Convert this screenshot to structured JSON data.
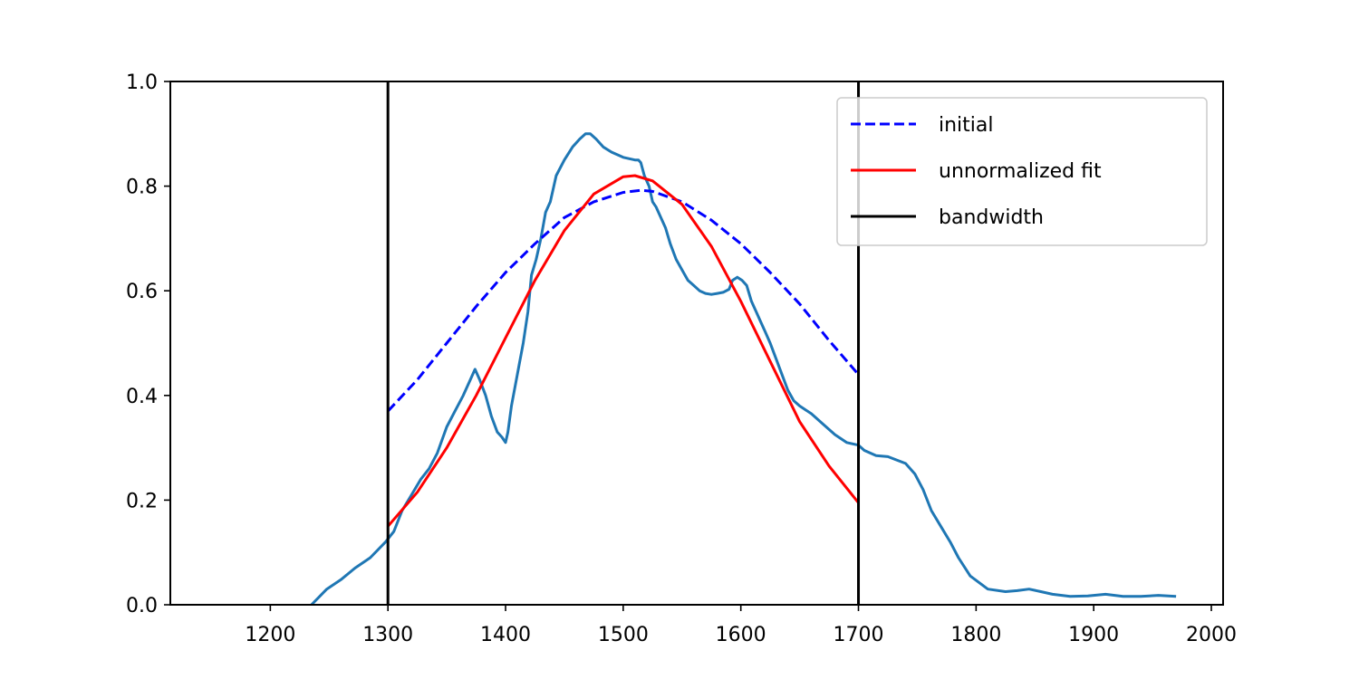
{
  "chart_data": {
    "type": "line",
    "title": "",
    "xlabel": "",
    "ylabel": "",
    "xlim": [
      1115,
      2010
    ],
    "ylim": [
      0,
      1
    ],
    "x_ticks": [
      1200,
      1300,
      1400,
      1500,
      1600,
      1700,
      1800,
      1900,
      2000
    ],
    "y_ticks": [
      0.0,
      0.2,
      0.4,
      0.6,
      0.8,
      1.0
    ],
    "x_tick_labels": [
      "1200",
      "1300",
      "1400",
      "1500",
      "1600",
      "1700",
      "1800",
      "1900",
      "2000"
    ],
    "y_tick_labels": [
      "0.0",
      "0.2",
      "0.4",
      "0.6",
      "0.8",
      "1.0"
    ],
    "grid": false,
    "legend_position": "top-right",
    "series": [
      {
        "name": "",
        "color": "#1f77b4",
        "style": "solid",
        "x": [
          1235,
          1248,
          1260,
          1272,
          1285,
          1298,
          1305,
          1312,
          1320,
          1328,
          1335,
          1342,
          1350,
          1357,
          1364,
          1370,
          1374,
          1378,
          1383,
          1388,
          1393,
          1397,
          1400,
          1402,
          1405,
          1410,
          1415,
          1419,
          1422,
          1426,
          1430,
          1434,
          1438,
          1443,
          1450,
          1457,
          1463,
          1468,
          1472,
          1477,
          1483,
          1490,
          1500,
          1510,
          1513,
          1515,
          1518,
          1522,
          1525,
          1528,
          1532,
          1536,
          1540,
          1545,
          1550,
          1555,
          1560,
          1565,
          1570,
          1575,
          1580,
          1585,
          1590,
          1593,
          1597,
          1601,
          1605,
          1609,
          1613,
          1617,
          1621,
          1625,
          1630,
          1635,
          1640,
          1645,
          1650,
          1660,
          1670,
          1680,
          1690,
          1700,
          1705,
          1715,
          1725,
          1740,
          1748,
          1755,
          1762,
          1770,
          1778,
          1785,
          1795,
          1810,
          1825,
          1835,
          1845,
          1855,
          1865,
          1880,
          1895,
          1910,
          1925,
          1940,
          1955,
          1970
        ],
        "y": [
          0.0,
          0.03,
          0.048,
          0.07,
          0.09,
          0.12,
          0.14,
          0.18,
          0.21,
          0.24,
          0.26,
          0.29,
          0.34,
          0.37,
          0.4,
          0.43,
          0.45,
          0.43,
          0.4,
          0.36,
          0.33,
          0.32,
          0.31,
          0.33,
          0.38,
          0.44,
          0.5,
          0.56,
          0.63,
          0.66,
          0.7,
          0.75,
          0.77,
          0.82,
          0.85,
          0.875,
          0.89,
          0.9,
          0.9,
          0.89,
          0.875,
          0.865,
          0.855,
          0.85,
          0.85,
          0.845,
          0.82,
          0.8,
          0.77,
          0.76,
          0.74,
          0.72,
          0.69,
          0.66,
          0.64,
          0.62,
          0.61,
          0.6,
          0.595,
          0.593,
          0.595,
          0.597,
          0.603,
          0.62,
          0.626,
          0.62,
          0.61,
          0.58,
          0.56,
          0.54,
          0.52,
          0.5,
          0.47,
          0.44,
          0.41,
          0.39,
          0.38,
          0.365,
          0.345,
          0.325,
          0.31,
          0.305,
          0.295,
          0.285,
          0.283,
          0.27,
          0.25,
          0.22,
          0.18,
          0.15,
          0.12,
          0.09,
          0.055,
          0.03,
          0.025,
          0.027,
          0.03,
          0.025,
          0.02,
          0.016,
          0.017,
          0.02,
          0.016,
          0.016,
          0.018,
          0.016
        ]
      },
      {
        "name": "initial",
        "color": "#0000ff",
        "style": "dashed",
        "x": [
          1300,
          1325,
          1350,
          1375,
          1400,
          1425,
          1450,
          1475,
          1500,
          1515,
          1525,
          1550,
          1575,
          1600,
          1625,
          1650,
          1675,
          1700
        ],
        "y": [
          0.37,
          0.43,
          0.5,
          0.57,
          0.635,
          0.69,
          0.74,
          0.77,
          0.788,
          0.792,
          0.79,
          0.77,
          0.735,
          0.69,
          0.635,
          0.575,
          0.505,
          0.44
        ]
      },
      {
        "name": "unnormalized fit",
        "color": "#ff0000",
        "style": "solid",
        "x": [
          1300,
          1325,
          1350,
          1375,
          1400,
          1425,
          1450,
          1475,
          1500,
          1510,
          1525,
          1550,
          1575,
          1600,
          1625,
          1650,
          1675,
          1700
        ],
        "y": [
          0.15,
          0.215,
          0.3,
          0.4,
          0.51,
          0.62,
          0.715,
          0.785,
          0.818,
          0.82,
          0.81,
          0.765,
          0.685,
          0.58,
          0.465,
          0.35,
          0.265,
          0.195
        ]
      },
      {
        "name": "bandwidth",
        "color": "#000000",
        "style": "solid",
        "kind": "vlines",
        "x": [
          1300,
          1700
        ]
      }
    ]
  }
}
